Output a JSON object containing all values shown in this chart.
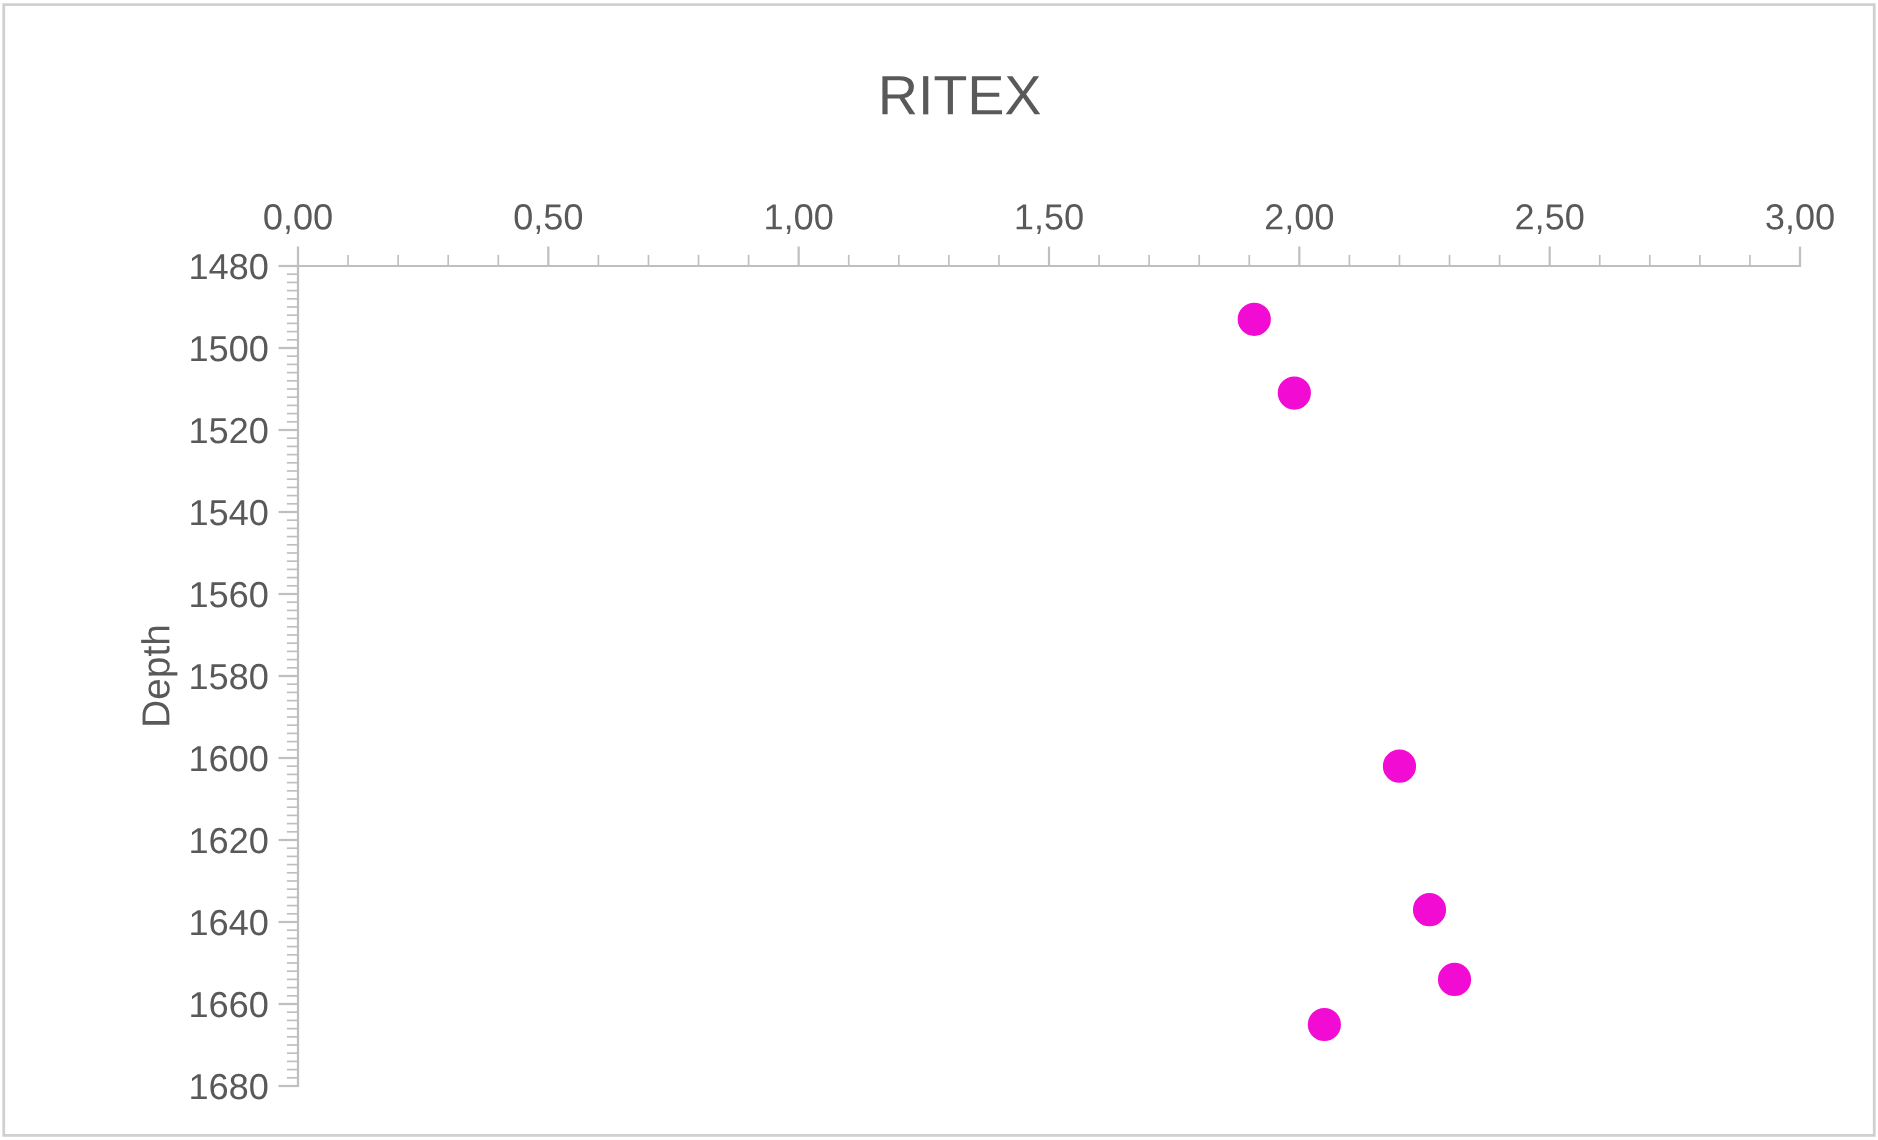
{
  "chart_data": {
    "type": "scatter",
    "title": "RITEX",
    "ylabel": "Depth",
    "x": [
      1.91,
      1.99,
      2.2,
      2.26,
      2.31,
      2.05
    ],
    "series": [
      {
        "color": "#f20cd3",
        "values": [
          1493,
          1511,
          1602,
          1637,
          1654,
          1665
        ]
      }
    ],
    "xlim": [
      0,
      3
    ],
    "xticks": [
      {
        "value": 0,
        "label": "0,00"
      },
      {
        "value": 0.5,
        "label": "0,50"
      },
      {
        "value": 1,
        "label": "1,00"
      },
      {
        "value": 1.5,
        "label": "1,50"
      },
      {
        "value": 2,
        "label": "2,00"
      },
      {
        "value": 2.5,
        "label": "2,50"
      },
      {
        "value": 3,
        "label": "3,00"
      }
    ],
    "ylim": [
      1680,
      1480
    ],
    "yticks": [
      1480,
      1500,
      1520,
      1540,
      1560,
      1580,
      1600,
      1620,
      1640,
      1660,
      1680
    ],
    "marker": "circle",
    "grid": false,
    "legend": false
  }
}
